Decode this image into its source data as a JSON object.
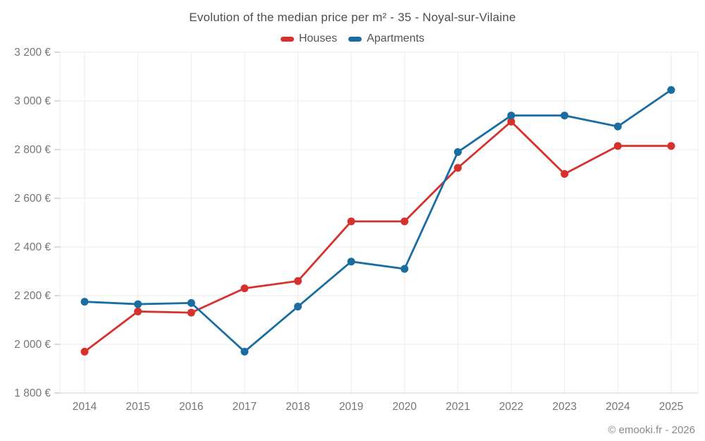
{
  "title": "Evolution of the median price per m² - 35 - Noyal-sur-Vilaine",
  "footer": "© emooki.fr - 2026",
  "legend": [
    {
      "label": "Houses",
      "color": "#d7312e"
    },
    {
      "label": "Apartments",
      "color": "#1a6da3"
    }
  ],
  "colors": {
    "houses": "#d7312e",
    "apartments": "#1a6da3",
    "gridline": "#ebebeb",
    "axis_line": "#d2d2d2",
    "tick": "#b4b4b4",
    "tick_label": "#757575",
    "title_text": "#4e4e4e"
  },
  "chart_data": {
    "type": "line",
    "title": "Evolution of the median price per m² - 35 - Noyal-sur-Vilaine",
    "x": [
      2014,
      2015,
      2016,
      2017,
      2018,
      2019,
      2020,
      2021,
      2022,
      2023,
      2024,
      2025
    ],
    "x_labels": [
      "2014",
      "2015",
      "2016",
      "2017",
      "2018",
      "2019",
      "2020",
      "2021",
      "2022",
      "2023",
      "2024",
      "2025"
    ],
    "series": [
      {
        "name": "Houses",
        "color": "#d7312e",
        "values": [
          1970,
          2135,
          2130,
          2230,
          2260,
          2505,
          2505,
          2725,
          2915,
          2700,
          2815,
          2815
        ]
      },
      {
        "name": "Apartments",
        "color": "#1a6da3",
        "values": [
          2175,
          2165,
          2170,
          1970,
          2155,
          2340,
          2310,
          2790,
          2940,
          2940,
          2895,
          3045
        ]
      }
    ],
    "xlabel": "",
    "ylabel": "",
    "ylim": [
      1800,
      3200
    ],
    "ytick_step": 200,
    "ytick_labels": [
      "1 800 €",
      "2 000 €",
      "2 200 €",
      "2 400 €",
      "2 600 €",
      "2 800 €",
      "3 000 €",
      "3 200 €"
    ],
    "grid": true,
    "legend_position": "top"
  }
}
